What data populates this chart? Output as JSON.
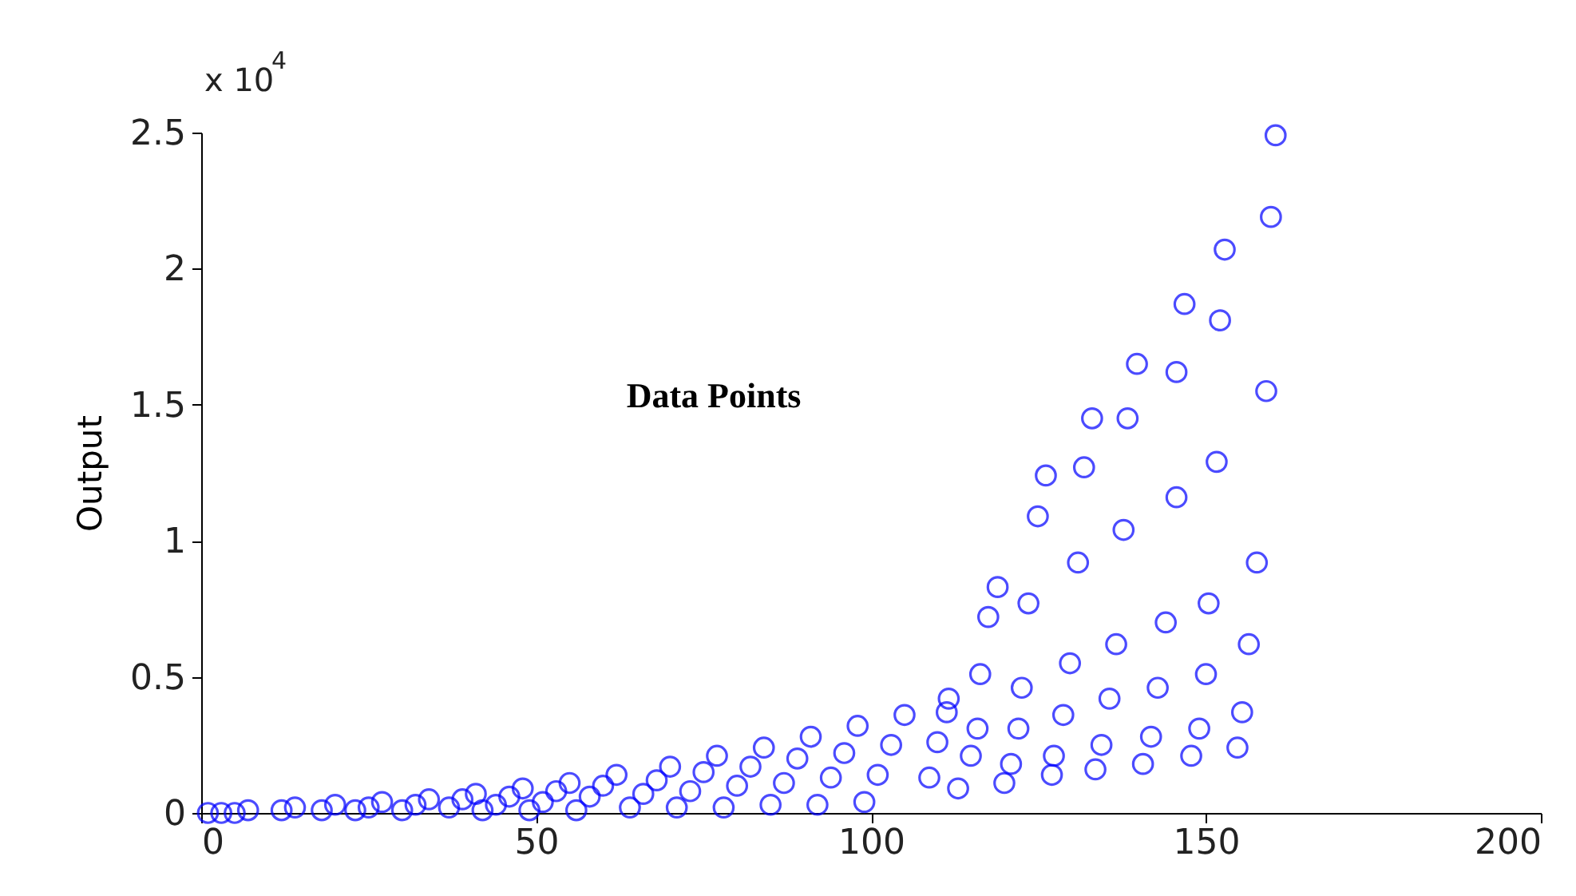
{
  "chart_data": {
    "type": "scatter",
    "title": "Data Points",
    "ylabel": "Output",
    "annotations": [
      "x 10$^{4}$"
    ],
    "xlim": [
      0,
      200
    ],
    "xticks": [
      0,
      50,
      100,
      150,
      200
    ],
    "ylim": [
      0,
      2.5
    ],
    "yticks": [
      0,
      0.5,
      1,
      1.5,
      2,
      2.5
    ],
    "grid": false,
    "marker": "circle",
    "series": [
      {
        "color": "#0000ff",
        "x": [
          1,
          3,
          5,
          7,
          12,
          14,
          18,
          20,
          23,
          25,
          27,
          30,
          32,
          34,
          37,
          39,
          41,
          42,
          44,
          46,
          48,
          49,
          51,
          53,
          55,
          56,
          58,
          60,
          62,
          64,
          66,
          68,
          70,
          71,
          73,
          75,
          77,
          78,
          80,
          82,
          84,
          85,
          87,
          89,
          91,
          92,
          94,
          96,
          98,
          99,
          101,
          103,
          105,
          108.7,
          109.9,
          111.3,
          111.6,
          113,
          114.9,
          115.9,
          116.3,
          117.5,
          118.9,
          119.9,
          120.9,
          122,
          122.5,
          123.5,
          124.9,
          126.1,
          127,
          127.3,
          128.7,
          129.7,
          130.9,
          131.8,
          133,
          133.5,
          134.4,
          135.6,
          136.6,
          137.7,
          138.3,
          139.7,
          140.6,
          141.8,
          142.8,
          144,
          145.6,
          145.6,
          146.8,
          147.8,
          149,
          150,
          150.4,
          151.6,
          152.1,
          152.8,
          154.7,
          155.4,
          156.4,
          157.6,
          159,
          159.7,
          160.4
        ],
        "values": [
          0,
          0,
          0,
          0.01,
          0.01,
          0.02,
          0.01,
          0.03,
          0.01,
          0.02,
          0.04,
          0.01,
          0.03,
          0.05,
          0.02,
          0.05,
          0.07,
          0.01,
          0.03,
          0.06,
          0.09,
          0.01,
          0.04,
          0.08,
          0.11,
          0.01,
          0.06,
          0.1,
          0.14,
          0.02,
          0.07,
          0.12,
          0.17,
          0.02,
          0.08,
          0.15,
          0.21,
          0.02,
          0.1,
          0.17,
          0.24,
          0.03,
          0.11,
          0.2,
          0.28,
          0.03,
          0.13,
          0.22,
          0.32,
          0.04,
          0.14,
          0.25,
          0.36,
          0.13,
          0.26,
          0.37,
          0.42,
          0.09,
          0.21,
          0.31,
          0.51,
          0.72,
          0.83,
          0.11,
          0.18,
          0.31,
          0.46,
          0.77,
          1.09,
          1.24,
          0.14,
          0.21,
          0.36,
          0.55,
          0.92,
          1.27,
          1.45,
          0.16,
          0.25,
          0.42,
          0.62,
          1.04,
          1.45,
          1.65,
          0.18,
          0.28,
          0.46,
          0.7,
          1.16,
          1.62,
          1.87,
          0.21,
          0.31,
          0.51,
          0.77,
          1.29,
          1.81,
          2.07,
          0.24,
          0.37,
          0.62,
          0.92,
          1.55,
          2.19,
          2.49
        ]
      }
    ]
  }
}
